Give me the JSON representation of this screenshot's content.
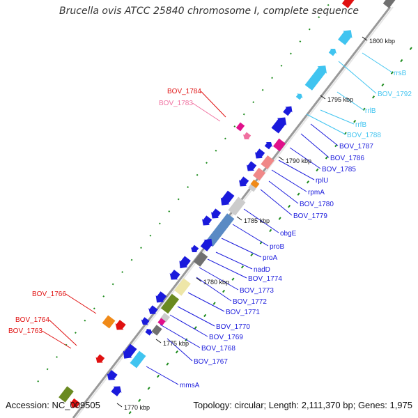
{
  "title": "Brucella ovis ATCC 25840 chromosome I, complete sequence",
  "accession": "Accession: NC_009505",
  "topology": "Topology: circular; Length: 2,111,370 bp; Genes: 1,975",
  "colors": {
    "backbone": "#999999",
    "blue": "#1a1adc",
    "cyan": "#40c4f0",
    "red": "#e01010",
    "pink": "#f070a0",
    "magenta": "#e0108a",
    "salmon": "#f08888",
    "steel": "#5a8ac4",
    "olive": "#6a8a20",
    "khaki": "#eee6a8",
    "orange": "#f08a18",
    "grey": "#707070",
    "lightgrey": "#cccccc",
    "green": "#1a8a1a"
  },
  "ticks": [
    "1800 kbp",
    "1795 kbp",
    "1790 kbp",
    "1785 kbp",
    "1780 kbp",
    "1775 kbp",
    "1770 kbp"
  ],
  "labels_right": [
    {
      "text": "rrsB",
      "color": "#40c4f0"
    },
    {
      "text": "BOV_1792",
      "color": "#40c4f0"
    },
    {
      "text": "rrlB",
      "color": "#40c4f0"
    },
    {
      "text": "rrfB",
      "color": "#40c4f0"
    },
    {
      "text": "BOV_1788",
      "color": "#40c4f0"
    },
    {
      "text": "BOV_1787",
      "color": "#1a1adc"
    },
    {
      "text": "BOV_1786",
      "color": "#1a1adc"
    },
    {
      "text": "BOV_1785",
      "color": "#1a1adc"
    },
    {
      "text": "rplU",
      "color": "#1a1adc"
    },
    {
      "text": "rpmA",
      "color": "#1a1adc"
    },
    {
      "text": "BOV_1780",
      "color": "#1a1adc"
    },
    {
      "text": "BOV_1779",
      "color": "#1a1adc"
    },
    {
      "text": "obgE",
      "color": "#1a1adc"
    },
    {
      "text": "proB",
      "color": "#1a1adc"
    },
    {
      "text": "proA",
      "color": "#1a1adc"
    },
    {
      "text": "nadD",
      "color": "#1a1adc"
    },
    {
      "text": "BOV_1774",
      "color": "#1a1adc"
    },
    {
      "text": "BOV_1773",
      "color": "#1a1adc"
    },
    {
      "text": "BOV_1772",
      "color": "#1a1adc"
    },
    {
      "text": "BOV_1771",
      "color": "#1a1adc"
    },
    {
      "text": "BOV_1770",
      "color": "#1a1adc"
    },
    {
      "text": "BOV_1769",
      "color": "#1a1adc"
    },
    {
      "text": "BOV_1768",
      "color": "#1a1adc"
    },
    {
      "text": "BOV_1767",
      "color": "#1a1adc"
    },
    {
      "text": "mmsA",
      "color": "#1a1adc"
    }
  ],
  "labels_left": [
    {
      "text": "BOV_1784",
      "color": "#e01010"
    },
    {
      "text": "BOV_1783",
      "color": "#f070a0"
    },
    {
      "text": "BOV_1766",
      "color": "#e01010"
    },
    {
      "text": "BOV_1764",
      "color": "#e01010"
    },
    {
      "text": "BOV_1763",
      "color": "#e01010"
    }
  ]
}
